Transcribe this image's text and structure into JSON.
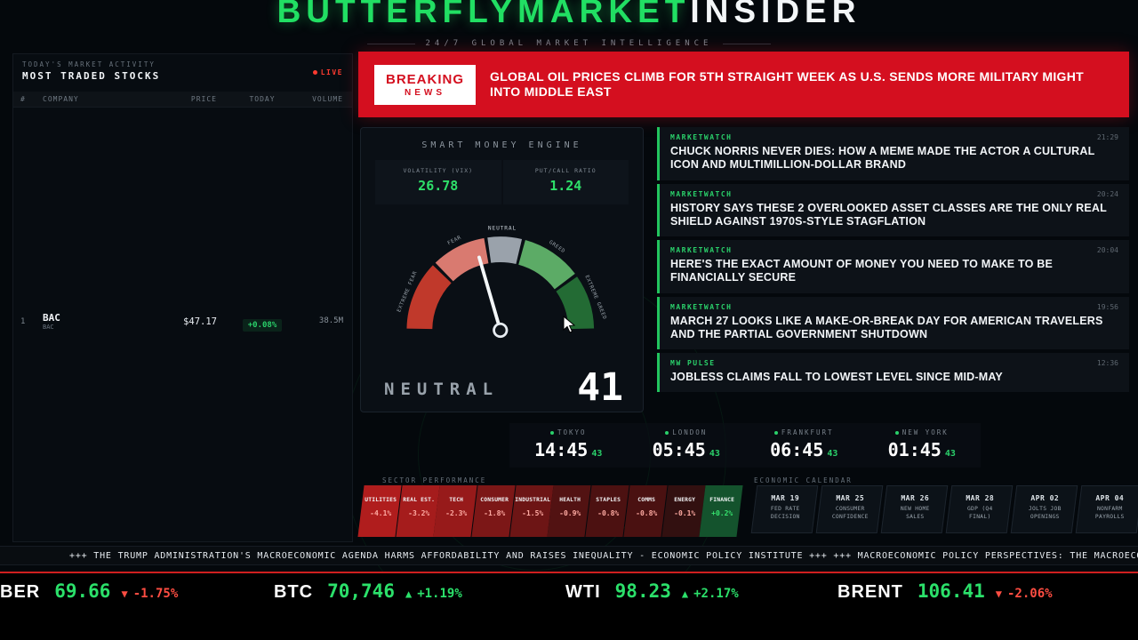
{
  "colors": {
    "accent_green": "#22c55e",
    "breaking_red": "#d40f1f",
    "up_green": "#2be06a",
    "down_red": "#ff4d42"
  },
  "header": {
    "title_green": "BUTTERFLYMARKET",
    "title_white": "INSIDER",
    "subtitle": "24/7 GLOBAL MARKET INTELLIGENCE"
  },
  "market_activity": {
    "kicker": "TODAY'S MARKET ACTIVITY",
    "title": "MOST TRADED STOCKS",
    "live_label": "LIVE",
    "columns": [
      "#",
      "COMPANY",
      "PRICE",
      "TODAY",
      "VOLUME"
    ],
    "rows": [
      {
        "rank": "1",
        "symbol": "BAC",
        "name": "BAC",
        "price": "$47.17",
        "change": "+0.08%",
        "volume": "38.5M",
        "direction": "up"
      }
    ]
  },
  "breaking": {
    "badge_line1": "BREAKING",
    "badge_line2": "NEWS",
    "headline": "GLOBAL OIL PRICES CLIMB FOR 5TH STRAIGHT WEEK AS U.S. SENDS MORE MILITARY MIGHT INTO MIDDLE EAST"
  },
  "smart_money": {
    "title": "SMART MONEY ENGINE",
    "stats": [
      {
        "label": "VOLATILITY (VIX)",
        "value": "26.78"
      },
      {
        "label": "PUT/CALL RATIO",
        "value": "1.24"
      }
    ],
    "gauge": {
      "value": 41,
      "label": "NEUTRAL",
      "segments": [
        "EXTREME FEAR",
        "FEAR",
        "NEUTRAL",
        "GREED",
        "EXTREME GREED"
      ]
    }
  },
  "news": {
    "items": [
      {
        "source": "MARKETWATCH",
        "time": "21:29",
        "headline": "CHUCK NORRIS NEVER DIES: HOW A MEME MADE THE ACTOR A CULTURAL ICON AND MULTIMILLION-DOLLAR BRAND"
      },
      {
        "source": "MARKETWATCH",
        "time": "20:24",
        "headline": "HISTORY SAYS THESE 2 OVERLOOKED ASSET CLASSES ARE THE ONLY REAL SHIELD AGAINST 1970S-STYLE STAGFLATION"
      },
      {
        "source": "MARKETWATCH",
        "time": "20:04",
        "headline": "HERE'S THE EXACT AMOUNT OF MONEY YOU NEED TO MAKE TO BE FINANCIALLY SECURE"
      },
      {
        "source": "MARKETWATCH",
        "time": "19:56",
        "headline": "MARCH 27 LOOKS LIKE A MAKE-OR-BREAK DAY FOR AMERICAN TRAVELERS AND THE PARTIAL GOVERNMENT SHUTDOWN"
      },
      {
        "source": "MW PULSE",
        "time": "12:36",
        "headline": "JOBLESS CLAIMS FALL TO LOWEST LEVEL SINCE MID-MAY"
      }
    ]
  },
  "clocks": [
    {
      "city": "TOKYO",
      "time": "14:45",
      "seconds": "43"
    },
    {
      "city": "LONDON",
      "time": "05:45",
      "seconds": "43"
    },
    {
      "city": "FRANKFURT",
      "time": "06:45",
      "seconds": "43"
    },
    {
      "city": "NEW YORK",
      "time": "01:45",
      "seconds": "43"
    }
  ],
  "sectors": {
    "title": "SECTOR PERFORMANCE",
    "items": [
      {
        "name": "UTILITIES",
        "value": "-4.1%"
      },
      {
        "name": "REAL EST.",
        "value": "-3.2%"
      },
      {
        "name": "TECH",
        "value": "-2.3%"
      },
      {
        "name": "CONSUMER",
        "value": "-1.8%"
      },
      {
        "name": "INDUSTRIAL",
        "value": "-1.5%"
      },
      {
        "name": "HEALTH",
        "value": "-0.9%"
      },
      {
        "name": "STAPLES",
        "value": "-0.8%"
      },
      {
        "name": "COMMS",
        "value": "-0.8%"
      },
      {
        "name": "ENERGY",
        "value": "-0.1%"
      },
      {
        "name": "FINANCE",
        "value": "+0.2%"
      }
    ]
  },
  "calendar": {
    "title": "ECONOMIC CALENDAR",
    "items": [
      {
        "date": "MAR 19",
        "event": "FED RATE DECISION"
      },
      {
        "date": "MAR 25",
        "event": "CONSUMER CONFIDENCE"
      },
      {
        "date": "MAR 26",
        "event": "NEW HOME SALES"
      },
      {
        "date": "MAR 28",
        "event": "GDP (Q4 FINAL)"
      },
      {
        "date": "APR 02",
        "event": "JOLTS JOB OPENINGS"
      },
      {
        "date": "APR 04",
        "event": "NONFARM PAYROLLS"
      }
    ]
  },
  "ticker_tape": "+++ THE TRUMP ADMINISTRATION'S MACROECONOMIC AGENDA HARMS AFFORDABILITY AND RAISES INEQUALITY - ECONOMIC POLICY INSTITUTE +++ +++ MACROECONOMIC POLICY PERSPECTIVES: THE MACROECONOM",
  "price_bar": [
    {
      "label": "BER",
      "price": "69.66",
      "arrow": "▼",
      "change": "-1.75%",
      "direction": "down"
    },
    {
      "label": "BTC",
      "price": "70,746",
      "arrow": "▲",
      "change": "+1.19%",
      "direction": "up"
    },
    {
      "label": "WTI",
      "price": "98.23",
      "arrow": "▲",
      "change": "+2.17%",
      "direction": "up"
    },
    {
      "label": "BRENT",
      "price": "106.41",
      "arrow": "▼",
      "change": "-2.06%",
      "direction": "down"
    }
  ]
}
